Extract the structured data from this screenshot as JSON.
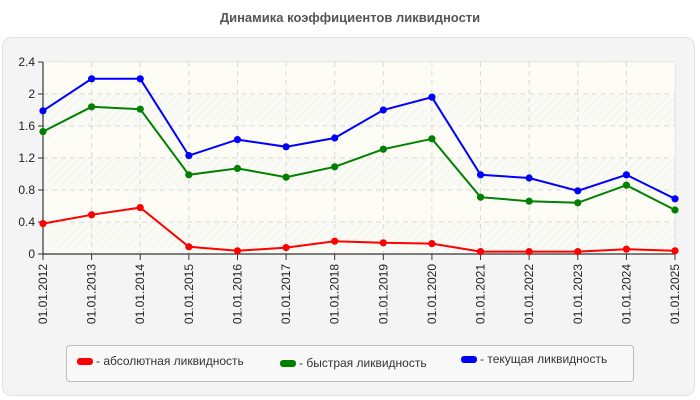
{
  "chart_data": {
    "type": "line",
    "title": "Динамика коэффициентов ликвидности",
    "xlabel": "",
    "ylabel": "",
    "categories": [
      "01.01.2012",
      "01.01.2013",
      "01.01.2014",
      "01.01.2015",
      "01.01.2016",
      "01.01.2017",
      "01.01.2018",
      "01.01.2019",
      "01.01.2020",
      "01.01.2021",
      "01.01.2022",
      "01.01.2023",
      "01.01.2024",
      "01.01.2025"
    ],
    "series": [
      {
        "name": "- абсолютная ликвидность",
        "color": "#ff0000",
        "values": [
          0.38,
          0.49,
          0.58,
          0.09,
          0.04,
          0.08,
          0.16,
          0.14,
          0.13,
          0.03,
          0.03,
          0.03,
          0.06,
          0.04
        ]
      },
      {
        "name": "- быстрая ликвидность",
        "color": "#008000",
        "values": [
          1.53,
          1.84,
          1.81,
          0.99,
          1.07,
          0.96,
          1.09,
          1.31,
          1.44,
          0.71,
          0.66,
          0.64,
          0.86,
          0.55
        ]
      },
      {
        "name": "- текущая ликвидность",
        "color": "#0000ff",
        "values": [
          1.79,
          2.19,
          2.19,
          1.23,
          1.43,
          1.34,
          1.45,
          1.8,
          1.96,
          0.99,
          0.95,
          0.79,
          0.99,
          0.69
        ]
      }
    ],
    "yticks": [
      "0",
      "0.4",
      "0.8",
      "1.2",
      "1.6",
      "2",
      "2.4"
    ],
    "ylim": [
      0,
      2.4
    ],
    "grid": true,
    "legend_position": "bottom"
  },
  "legend": {
    "items": [
      {
        "label": "- абсолютная ликвидность",
        "color": "#ff0000"
      },
      {
        "label": "- быстрая ликвидность",
        "color": "#008000"
      },
      {
        "label": "- текущая ликвидность",
        "color": "#0000ff"
      }
    ]
  }
}
